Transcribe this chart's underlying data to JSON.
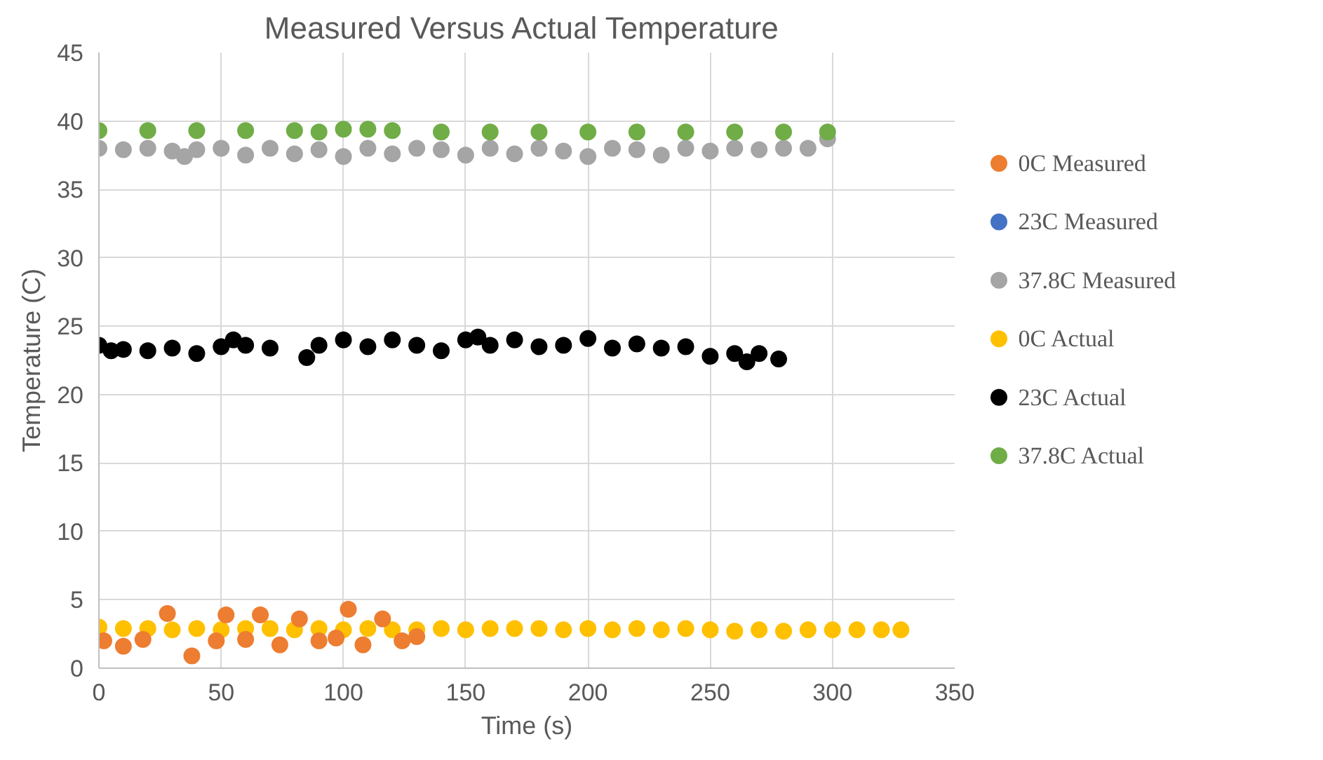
{
  "chart_data": {
    "type": "scatter",
    "title": "Measured  Versus Actual Temperature",
    "xlabel": "Time (s)",
    "ylabel": "Temperature (C)",
    "xlim": [
      0,
      350
    ],
    "xticks": [
      0,
      50,
      100,
      150,
      200,
      250,
      300,
      350
    ],
    "ylim": [
      0,
      45
    ],
    "yticks": [
      0,
      5,
      10,
      15,
      20,
      25,
      30,
      35,
      40,
      45
    ],
    "grid": true,
    "legend": "right",
    "marker": "circle",
    "series": [
      {
        "name": "0C Measured",
        "color": "#ed7d31",
        "x": [
          2,
          10,
          18,
          28,
          38,
          48,
          52,
          60,
          66,
          74,
          82,
          90,
          97,
          102,
          108,
          116,
          124,
          130
        ],
        "values": [
          2.0,
          1.6,
          2.1,
          4.0,
          0.9,
          2.0,
          3.9,
          2.1,
          3.9,
          1.7,
          3.6,
          2.0,
          2.2,
          4.3,
          1.7,
          3.6,
          2.0,
          2.3
        ]
      },
      {
        "name": "23C Measured",
        "color": "#4472c4"
      },
      {
        "name": "37.8C Measured",
        "color": "#a5a5a5",
        "x": [
          0,
          10,
          20,
          30,
          35,
          40,
          50,
          60,
          70,
          80,
          90,
          100,
          110,
          120,
          130,
          140,
          150,
          160,
          170,
          180,
          190,
          200,
          210,
          220,
          230,
          240,
          250,
          260,
          270,
          280,
          290,
          298
        ],
        "values": [
          38.0,
          37.9,
          38.0,
          37.8,
          37.4,
          37.9,
          38.0,
          37.5,
          38.0,
          37.6,
          37.9,
          37.4,
          38.0,
          37.6,
          38.0,
          37.9,
          37.5,
          38.0,
          37.6,
          38.0,
          37.8,
          37.4,
          38.0,
          37.9,
          37.5,
          38.0,
          37.8,
          38.0,
          37.9,
          38.0,
          38.0,
          38.7
        ]
      },
      {
        "name": "0C Actual",
        "color": "#ffc000",
        "x": [
          0,
          10,
          20,
          30,
          40,
          50,
          60,
          70,
          80,
          90,
          100,
          110,
          120,
          130,
          140,
          150,
          160,
          170,
          180,
          190,
          200,
          210,
          220,
          230,
          240,
          250,
          260,
          270,
          280,
          290,
          300,
          310,
          320,
          328
        ],
        "values": [
          3.0,
          2.9,
          2.9,
          2.8,
          2.9,
          2.8,
          2.9,
          2.9,
          2.8,
          2.9,
          2.8,
          2.9,
          2.8,
          2.8,
          2.9,
          2.8,
          2.9,
          2.9,
          2.9,
          2.8,
          2.9,
          2.8,
          2.9,
          2.8,
          2.9,
          2.8,
          2.7,
          2.8,
          2.7,
          2.8,
          2.8,
          2.8,
          2.8,
          2.8
        ]
      },
      {
        "name": "23C Actual",
        "color": "#000000",
        "x": [
          0,
          5,
          10,
          20,
          30,
          40,
          50,
          55,
          60,
          70,
          85,
          90,
          100,
          110,
          120,
          130,
          140,
          150,
          155,
          160,
          170,
          180,
          190,
          200,
          210,
          220,
          230,
          240,
          250,
          260,
          265,
          270,
          278
        ],
        "values": [
          23.6,
          23.2,
          23.3,
          23.2,
          23.4,
          23.0,
          23.5,
          24.0,
          23.6,
          23.4,
          22.7,
          23.6,
          24.0,
          23.5,
          24.0,
          23.6,
          23.2,
          24.0,
          24.2,
          23.6,
          24.0,
          23.5,
          23.6,
          24.1,
          23.4,
          23.7,
          23.4,
          23.5,
          22.8,
          23.0,
          22.4,
          23.0,
          22.6
        ]
      },
      {
        "name": "37.8C Actual",
        "color": "#70ad47",
        "x": [
          0,
          20,
          40,
          60,
          80,
          90,
          100,
          110,
          120,
          140,
          160,
          180,
          200,
          220,
          240,
          260,
          280,
          298
        ],
        "values": [
          39.3,
          39.3,
          39.3,
          39.3,
          39.3,
          39.2,
          39.4,
          39.4,
          39.3,
          39.2,
          39.2,
          39.2,
          39.2,
          39.2,
          39.2,
          39.2,
          39.2,
          39.2
        ]
      }
    ]
  }
}
